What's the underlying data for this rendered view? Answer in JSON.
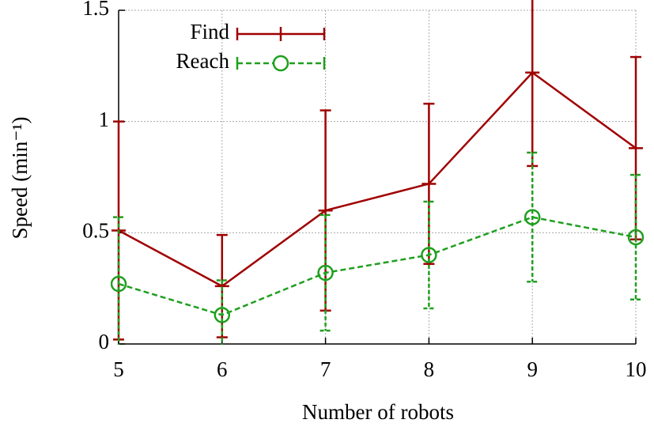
{
  "chart_data": {
    "type": "line",
    "x_label": "Number of robots",
    "y_label": "Speed (min⁻¹)",
    "x": [
      5,
      6,
      7,
      8,
      9,
      10
    ],
    "xlim": [
      5,
      10
    ],
    "xticks": [
      5,
      6,
      7,
      8,
      9,
      10
    ],
    "ylim": [
      0,
      1.5
    ],
    "yticks": [
      0,
      0.5,
      1,
      1.5
    ],
    "grid": true,
    "legend": "upper left",
    "series": [
      {
        "name": "Find",
        "color": "#a00000",
        "marker": "plus",
        "dash": "solid",
        "values": [
          0.51,
          0.26,
          0.6,
          0.72,
          1.22,
          0.88
        ],
        "errors": [
          0.49,
          0.23,
          0.45,
          0.36,
          0.42,
          0.41
        ]
      },
      {
        "name": "Reach",
        "color": "#1f9f1f",
        "marker": "circle",
        "dash": "dashed",
        "values": [
          0.27,
          0.13,
          0.32,
          0.4,
          0.57,
          0.48
        ],
        "errors": [
          0.3,
          0.156,
          0.26,
          0.24,
          0.29,
          0.28
        ]
      }
    ]
  }
}
